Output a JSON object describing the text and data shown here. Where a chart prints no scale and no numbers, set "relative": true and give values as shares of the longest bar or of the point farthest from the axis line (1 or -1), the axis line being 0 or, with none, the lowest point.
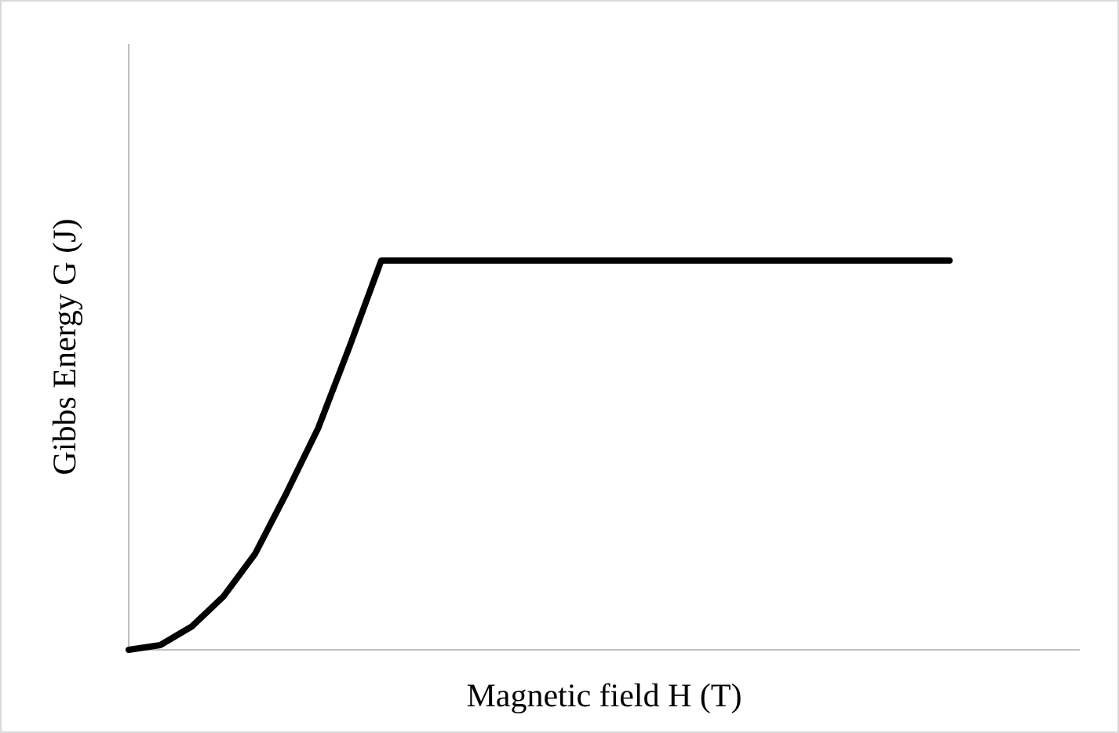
{
  "chart_data": {
    "type": "line",
    "relative": true,
    "xlabel": "Magnetic field H (T)",
    "ylabel": "Gibbs Energy G (J)",
    "categories": [
      null,
      null,
      null,
      null,
      null,
      null,
      null,
      null,
      null,
      null,
      null,
      null,
      null,
      null,
      null,
      null,
      null,
      null,
      null,
      null,
      null,
      null,
      null,
      null,
      null,
      null,
      null
    ],
    "series": [
      {
        "color": "#000000",
        "values": [
          0,
          0.012,
          0.06,
          0.137,
          0.246,
          0.403,
          0.569,
          0.78,
          1,
          1,
          1,
          1,
          1,
          1,
          1,
          1,
          1,
          1,
          1,
          1,
          1,
          1,
          1,
          1,
          1,
          1,
          1
        ]
      }
    ],
    "marker": "none",
    "line_style": "solid"
  }
}
